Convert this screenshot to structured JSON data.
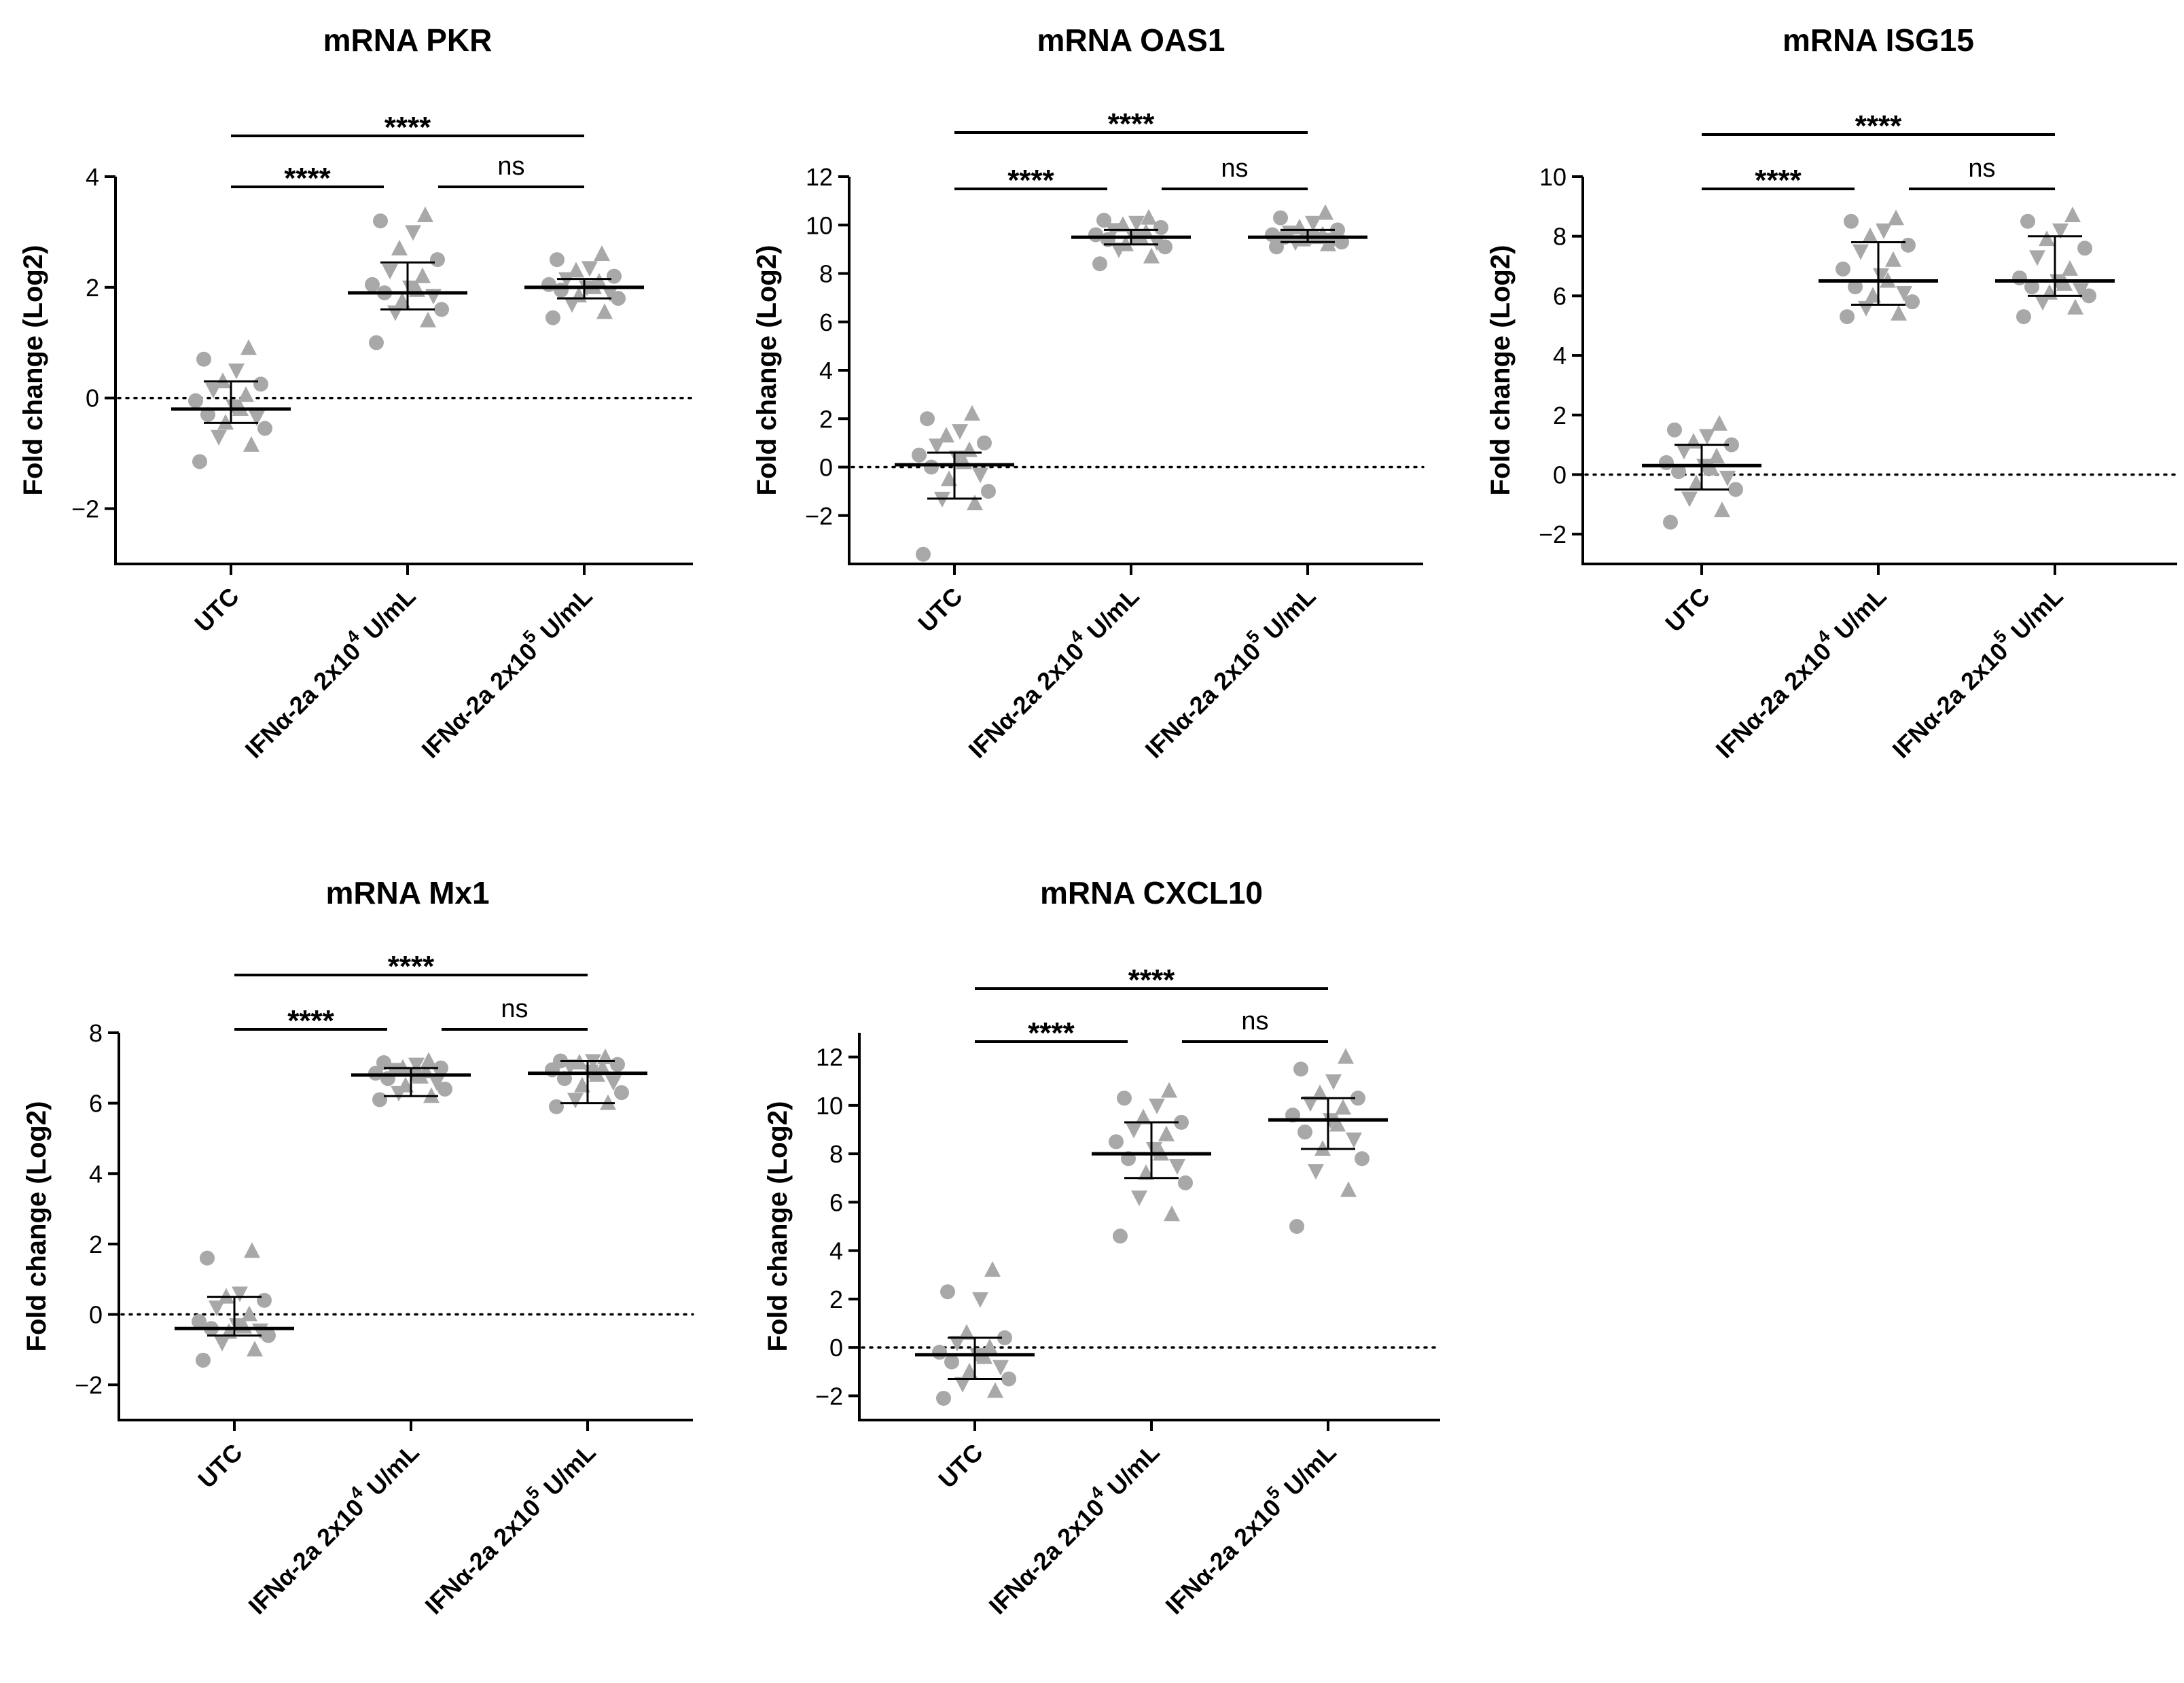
{
  "chart_data": [
    {
      "type": "scatter",
      "title": "mRNA PKR",
      "ylabel": "Fold change (Log2)",
      "ylim": [
        -3,
        4
      ],
      "yticks": [
        -2,
        0,
        2,
        4
      ],
      "ytick_labels": [
        "−2",
        "0",
        "2",
        "4"
      ],
      "categories": [
        {
          "main": "UTC",
          "sup": "",
          "tail": ""
        },
        {
          "main": "IFNα-2a 2x10",
          "sup": "4",
          "tail": " U/mL"
        },
        {
          "main": "IFNα-2a 2x10",
          "sup": "5",
          "tail": " U/mL"
        }
      ],
      "reference_line": 0,
      "median": [
        -0.2,
        1.9,
        2.0
      ],
      "error": [
        [
          -0.45,
          0.3
        ],
        [
          1.6,
          2.45
        ],
        [
          1.8,
          2.15
        ]
      ],
      "points": [
        [
          -1.15,
          -0.85,
          -0.7,
          -0.55,
          -0.45,
          -0.35,
          -0.3,
          -0.2,
          -0.15,
          -0.05,
          0.05,
          0.15,
          0.25,
          0.3,
          0.5,
          0.7,
          0.9
        ],
        [
          1.0,
          1.4,
          1.55,
          1.6,
          1.75,
          1.85,
          1.9,
          1.95,
          2.0,
          2.05,
          2.2,
          2.3,
          2.5,
          2.7,
          3.0,
          3.2,
          3.3
        ],
        [
          1.45,
          1.55,
          1.7,
          1.8,
          1.85,
          1.9,
          1.95,
          2.0,
          2.0,
          2.05,
          2.1,
          2.15,
          2.2,
          2.3,
          2.35,
          2.5,
          2.6
        ]
      ],
      "comparisons": [
        {
          "from": 0,
          "to": 1,
          "label": "****"
        },
        {
          "from": 1,
          "to": 2,
          "label": "ns"
        },
        {
          "from": 0,
          "to": 2,
          "label": "****"
        }
      ]
    },
    {
      "type": "scatter",
      "title": "mRNA OAS1",
      "ylabel": "Fold change (Log2)",
      "ylim": [
        -4,
        12
      ],
      "yticks": [
        -2,
        0,
        2,
        4,
        6,
        8,
        10,
        12
      ],
      "ytick_labels": [
        "−2",
        "0",
        "2",
        "4",
        "6",
        "8",
        "10",
        "12"
      ],
      "categories": [
        {
          "main": "UTC",
          "sup": "",
          "tail": ""
        },
        {
          "main": "IFNα-2a 2x10",
          "sup": "4",
          "tail": " U/mL"
        },
        {
          "main": "IFNα-2a 2x10",
          "sup": "5",
          "tail": " U/mL"
        }
      ],
      "reference_line": 0,
      "median": [
        0.1,
        9.5,
        9.5
      ],
      "error": [
        [
          -1.3,
          0.6
        ],
        [
          9.2,
          9.8
        ],
        [
          9.3,
          9.8
        ]
      ],
      "points": [
        [
          -3.6,
          -1.5,
          -1.3,
          -1.0,
          -0.5,
          -0.3,
          0.0,
          0.2,
          0.4,
          0.5,
          0.7,
          0.9,
          1.0,
          1.3,
          1.5,
          2.0,
          2.2
        ],
        [
          8.4,
          8.7,
          9.0,
          9.1,
          9.2,
          9.3,
          9.4,
          9.5,
          9.5,
          9.6,
          9.7,
          9.8,
          9.9,
          10.0,
          10.1,
          10.2,
          10.3
        ],
        [
          9.1,
          9.2,
          9.3,
          9.3,
          9.4,
          9.4,
          9.5,
          9.5,
          9.5,
          9.6,
          9.6,
          9.7,
          9.8,
          9.9,
          10.1,
          10.3,
          10.5
        ]
      ],
      "comparisons": [
        {
          "from": 0,
          "to": 1,
          "label": "****"
        },
        {
          "from": 1,
          "to": 2,
          "label": "ns"
        },
        {
          "from": 0,
          "to": 2,
          "label": "****"
        }
      ]
    },
    {
      "type": "scatter",
      "title": "mRNA ISG15",
      "ylabel": "Fold change (Log2)",
      "ylim": [
        -3,
        10
      ],
      "yticks": [
        -2,
        0,
        2,
        4,
        6,
        8,
        10
      ],
      "ytick_labels": [
        "−2",
        "0",
        "2",
        "4",
        "6",
        "8",
        "10"
      ],
      "categories": [
        {
          "main": "UTC",
          "sup": "",
          "tail": ""
        },
        {
          "main": "IFNα-2a 2x10",
          "sup": "4",
          "tail": " U/mL"
        },
        {
          "main": "IFNα-2a 2x10",
          "sup": "5",
          "tail": " U/mL"
        }
      ],
      "reference_line": 0,
      "median": [
        0.3,
        6.5,
        6.5
      ],
      "error": [
        [
          -0.5,
          1.0
        ],
        [
          5.7,
          7.8
        ],
        [
          6.0,
          8.0
        ]
      ],
      "points": [
        [
          -1.6,
          -1.2,
          -0.8,
          -0.5,
          -0.3,
          -0.1,
          0.1,
          0.2,
          0.3,
          0.4,
          0.6,
          0.8,
          1.0,
          1.1,
          1.3,
          1.5,
          1.7
        ],
        [
          5.3,
          5.4,
          5.6,
          5.8,
          6.0,
          6.1,
          6.3,
          6.5,
          6.7,
          6.9,
          7.2,
          7.5,
          7.7,
          8.0,
          8.2,
          8.5,
          8.6
        ],
        [
          5.3,
          5.6,
          5.8,
          6.0,
          6.1,
          6.2,
          6.3,
          6.4,
          6.5,
          6.6,
          6.9,
          7.3,
          7.6,
          7.9,
          8.2,
          8.5,
          8.7
        ]
      ],
      "comparisons": [
        {
          "from": 0,
          "to": 1,
          "label": "****"
        },
        {
          "from": 1,
          "to": 2,
          "label": "ns"
        },
        {
          "from": 0,
          "to": 2,
          "label": "****"
        }
      ]
    },
    {
      "type": "scatter",
      "title": "mRNA Mx1",
      "ylabel": "Fold change (Log2)",
      "ylim": [
        -3,
        8
      ],
      "yticks": [
        -2,
        0,
        2,
        4,
        6,
        8
      ],
      "ytick_labels": [
        "−2",
        "0",
        "2",
        "4",
        "6",
        "8"
      ],
      "categories": [
        {
          "main": "UTC",
          "sup": "",
          "tail": ""
        },
        {
          "main": "IFNα-2a 2x10",
          "sup": "4",
          "tail": " U/mL"
        },
        {
          "main": "IFNα-2a 2x10",
          "sup": "5",
          "tail": " U/mL"
        }
      ],
      "reference_line": 0,
      "median": [
        -0.4,
        6.8,
        6.85
      ],
      "error": [
        [
          -0.6,
          0.5
        ],
        [
          6.2,
          7.0
        ],
        [
          6.0,
          7.2
        ]
      ],
      "points": [
        [
          -1.3,
          -1.0,
          -0.8,
          -0.6,
          -0.5,
          -0.45,
          -0.4,
          -0.35,
          -0.3,
          -0.2,
          0.0,
          0.2,
          0.4,
          0.5,
          0.6,
          1.6,
          1.8
        ],
        [
          6.1,
          6.2,
          6.3,
          6.4,
          6.5,
          6.6,
          6.7,
          6.75,
          6.8,
          6.85,
          6.9,
          6.95,
          7.0,
          7.0,
          7.1,
          7.15,
          7.2
        ],
        [
          5.9,
          6.0,
          6.1,
          6.3,
          6.5,
          6.6,
          6.7,
          6.8,
          6.9,
          6.95,
          7.0,
          7.05,
          7.1,
          7.15,
          7.2,
          7.2,
          7.3
        ]
      ],
      "comparisons": [
        {
          "from": 0,
          "to": 1,
          "label": "****"
        },
        {
          "from": 1,
          "to": 2,
          "label": "ns"
        },
        {
          "from": 0,
          "to": 2,
          "label": "****"
        }
      ]
    },
    {
      "type": "scatter",
      "title": "mRNA CXCL10",
      "ylabel": "Fold change (Log2)",
      "ylim": [
        -3,
        13
      ],
      "yticks": [
        -2,
        0,
        2,
        4,
        6,
        8,
        10,
        12
      ],
      "ytick_labels": [
        "−2",
        "0",
        "2",
        "4",
        "6",
        "8",
        "10",
        "12"
      ],
      "categories": [
        {
          "main": "UTC",
          "sup": "",
          "tail": ""
        },
        {
          "main": "IFNα-2a 2x10",
          "sup": "4",
          "tail": " U/mL"
        },
        {
          "main": "IFNα-2a 2x10",
          "sup": "5",
          "tail": " U/mL"
        }
      ],
      "reference_line": 0,
      "median": [
        -0.3,
        8.0,
        9.4
      ],
      "error": [
        [
          -1.3,
          0.4
        ],
        [
          7.0,
          9.3
        ],
        [
          8.2,
          10.3
        ]
      ],
      "points": [
        [
          -2.1,
          -1.8,
          -1.5,
          -1.3,
          -1.0,
          -0.8,
          -0.6,
          -0.4,
          -0.3,
          -0.2,
          0.0,
          0.2,
          0.4,
          0.6,
          2.0,
          2.3,
          3.2
        ],
        [
          4.6,
          5.5,
          6.2,
          6.8,
          7.2,
          7.5,
          7.8,
          8.0,
          8.2,
          8.5,
          8.8,
          9.0,
          9.3,
          9.5,
          10.0,
          10.3,
          10.6
        ],
        [
          5.0,
          6.5,
          7.3,
          7.8,
          8.2,
          8.6,
          8.9,
          9.2,
          9.4,
          9.6,
          9.9,
          10.1,
          10.3,
          10.5,
          11.0,
          11.5,
          12.0
        ]
      ],
      "comparisons": [
        {
          "from": 0,
          "to": 1,
          "label": "****"
        },
        {
          "from": 1,
          "to": 2,
          "label": "ns"
        },
        {
          "from": 0,
          "to": 2,
          "label": "****"
        }
      ]
    }
  ]
}
